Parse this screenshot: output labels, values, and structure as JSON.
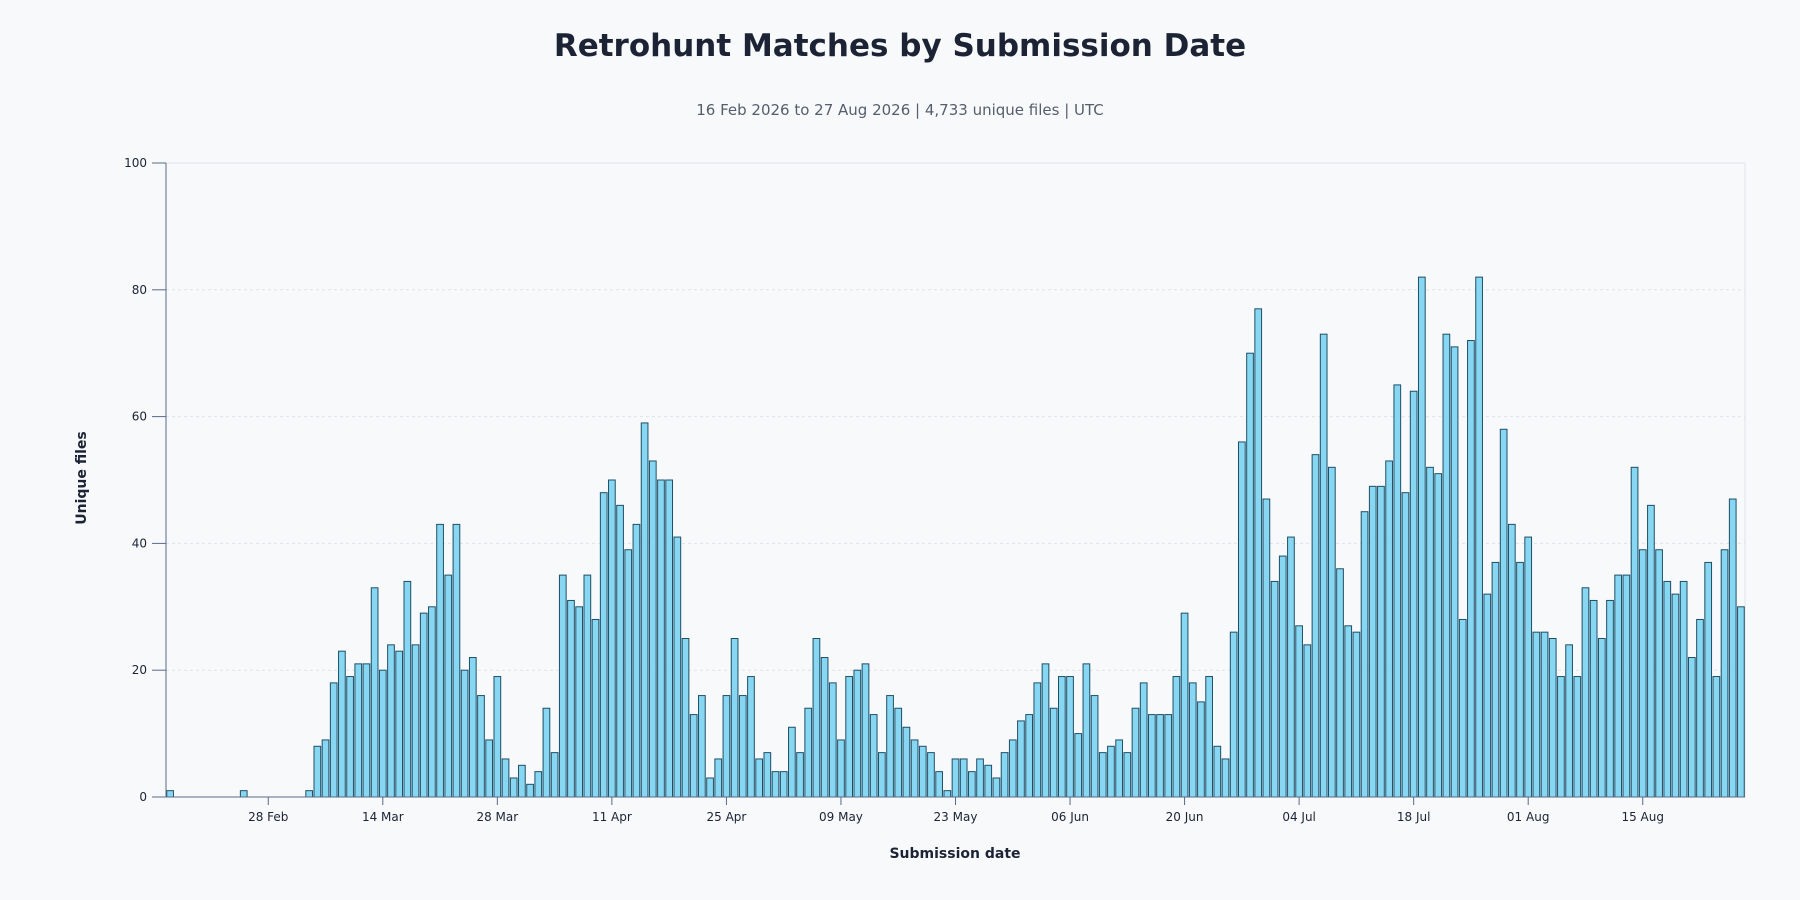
{
  "chart_data": {
    "type": "bar",
    "title": "Retrohunt Matches by Submission Date",
    "subtitle": "16 Feb 2026 to 27 Aug 2026 | 4,733 unique files | UTC",
    "xlabel": "Submission date",
    "ylabel": "Unique files",
    "start_date": "2026-02-16",
    "ylim": [
      0,
      100
    ],
    "y_ticks": [
      0,
      20,
      40,
      60,
      80,
      100
    ],
    "x_tick_labels": [
      "28 Feb",
      "14 Mar",
      "28 Mar",
      "11 Apr",
      "25 Apr",
      "09 May",
      "23 May",
      "06 Jun",
      "20 Jun",
      "04 Jul",
      "18 Jul",
      "01 Aug",
      "15 Aug"
    ],
    "grid": true,
    "colors": {
      "bar_fill": "#87d7f2",
      "bar_stroke": "#1f4f66",
      "grid": "#dfe3e8",
      "axis": "#5a6a85"
    },
    "values": [
      1,
      0,
      0,
      0,
      0,
      0,
      0,
      0,
      0,
      1,
      0,
      0,
      0,
      0,
      0,
      0,
      0,
      1,
      8,
      9,
      18,
      23,
      19,
      21,
      21,
      33,
      20,
      24,
      23,
      34,
      24,
      29,
      30,
      43,
      35,
      43,
      20,
      22,
      16,
      9,
      19,
      6,
      3,
      5,
      2,
      4,
      14,
      7,
      35,
      31,
      30,
      35,
      28,
      48,
      50,
      46,
      39,
      43,
      59,
      53,
      50,
      50,
      41,
      25,
      13,
      16,
      3,
      6,
      16,
      25,
      16,
      19,
      6,
      7,
      4,
      4,
      11,
      7,
      14,
      25,
      22,
      18,
      9,
      19,
      20,
      21,
      13,
      7,
      16,
      14,
      11,
      9,
      8,
      7,
      4,
      1,
      6,
      6,
      4,
      6,
      5,
      3,
      7,
      9,
      12,
      13,
      18,
      21,
      14,
      19,
      19,
      10,
      21,
      16,
      7,
      8,
      9,
      7,
      14,
      18,
      13,
      13,
      13,
      19,
      29,
      18,
      15,
      19,
      8,
      6,
      26,
      56,
      70,
      77,
      47,
      34,
      38,
      41,
      27,
      24,
      54,
      73,
      52,
      36,
      27,
      26,
      45,
      49,
      49,
      53,
      65,
      48,
      64,
      82,
      52,
      51,
      73,
      71,
      28,
      72,
      82,
      32,
      37,
      58,
      43,
      37,
      41,
      26,
      26,
      25,
      19,
      24,
      19,
      33,
      31,
      25,
      31,
      35,
      35,
      52,
      39,
      46,
      39,
      34,
      32,
      34,
      22,
      28,
      37,
      19,
      39,
      47,
      30
    ]
  }
}
